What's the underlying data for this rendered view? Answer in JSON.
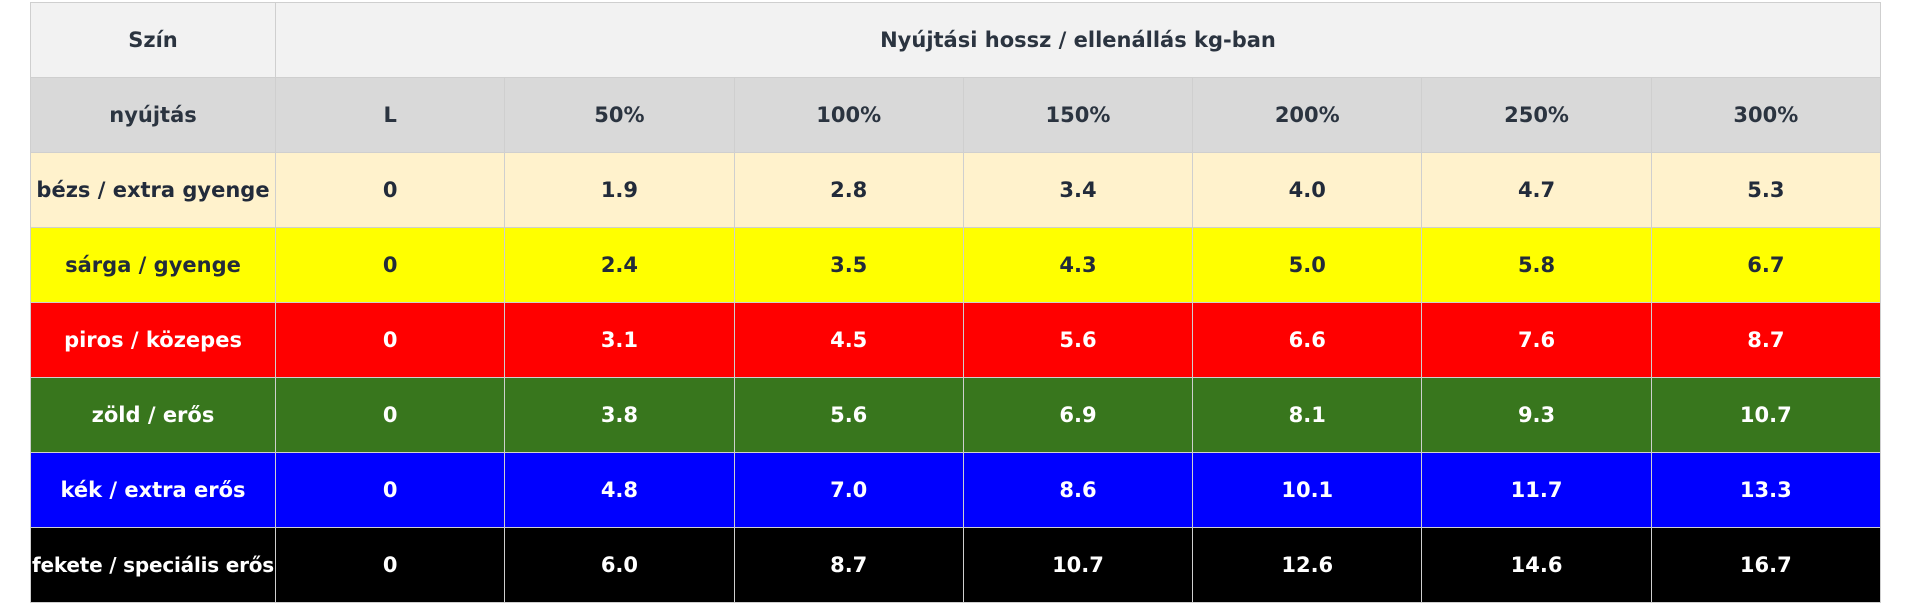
{
  "table": {
    "header": {
      "color_label": "Szín",
      "group_label": "Nyújtási hossz / ellenállás kg-ban"
    },
    "subheader": {
      "row_label": "nyújtás",
      "columns": [
        "L",
        "50%",
        "100%",
        "150%",
        "200%",
        "250%",
        "300%"
      ]
    },
    "rows": [
      {
        "label": "bézs / extra gyenge",
        "bg": "#fff2cc",
        "fg": "#222b3a",
        "values": [
          "0",
          "1.9",
          "2.8",
          "3.4",
          "4.0",
          "4.7",
          "5.3"
        ]
      },
      {
        "label": "sárga / gyenge",
        "bg": "#ffff00",
        "fg": "#222b3a",
        "values": [
          "0",
          "2.4",
          "3.5",
          "4.3",
          "5.0",
          "5.8",
          "6.7"
        ]
      },
      {
        "label": "piros / közepes",
        "bg": "#ff0000",
        "fg": "#ffffff",
        "values": [
          "0",
          "3.1",
          "4.5",
          "5.6",
          "6.6",
          "7.6",
          "8.7"
        ]
      },
      {
        "label": "zöld / erős",
        "bg": "#38761d",
        "fg": "#ffffff",
        "values": [
          "0",
          "3.8",
          "5.6",
          "6.9",
          "8.1",
          "9.3",
          "10.7"
        ]
      },
      {
        "label": "kék / extra erős",
        "bg": "#0000ff",
        "fg": "#ffffff",
        "values": [
          "0",
          "4.8",
          "7.0",
          "8.6",
          "10.1",
          "11.7",
          "13.3"
        ]
      },
      {
        "label": "fekete / speciális erős",
        "bg": "#000000",
        "fg": "#ffffff",
        "values": [
          "0",
          "6.0",
          "8.7",
          "10.7",
          "12.6",
          "14.6",
          "16.7"
        ]
      }
    ]
  }
}
